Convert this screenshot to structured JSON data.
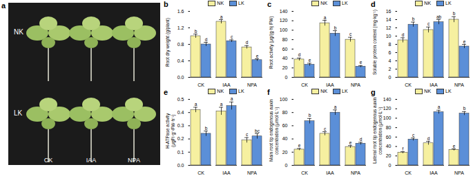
{
  "panel_a": {
    "panel": "a",
    "rows": [
      "NK",
      "LK"
    ],
    "columns": [
      "CK",
      "IAA",
      "NPA"
    ]
  },
  "chart_data": [
    {
      "type": "bar",
      "panel": "b",
      "y_label": "Root dry weight (g/plant)",
      "categories": [
        "CK",
        "IAA",
        "NPA"
      ],
      "series": [
        {
          "name": "NK",
          "color": "#f6f0a0",
          "values": [
            1.0,
            1.35,
            0.73
          ],
          "errors": [
            0.05,
            0.05,
            0.04
          ],
          "letters": [
            "b",
            "a",
            "d"
          ]
        },
        {
          "name": "LK",
          "color": "#5b8fd8",
          "values": [
            0.8,
            0.88,
            0.42
          ],
          "errors": [
            0.05,
            0.03,
            0.03
          ],
          "letters": [
            "d",
            "c",
            "e"
          ]
        }
      ],
      "ylim": [
        0,
        1.6
      ],
      "yticks": [
        {
          "value": 0,
          "label": "0.0"
        },
        0.4,
        0.8,
        1.2,
        1.6
      ],
      "legend": "top"
    },
    {
      "type": "bar",
      "panel": "c",
      "y_label": "Root activity (μg/(g·h) FW)",
      "categories": [
        "CK",
        "IAA",
        "NPA"
      ],
      "series": [
        {
          "name": "NK",
          "color": "#f6f0a0",
          "values": [
            38,
            115,
            80
          ],
          "errors": [
            3,
            6,
            5
          ],
          "letters": [
            "d",
            "a",
            "c"
          ]
        },
        {
          "name": "LK",
          "color": "#5b8fd8",
          "values": [
            27,
            93,
            23
          ],
          "errors": [
            3,
            6,
            2
          ],
          "letters": [
            "e",
            "b",
            "e"
          ]
        }
      ],
      "ylim": [
        0,
        140
      ],
      "yticks": [
        0,
        20,
        40,
        60,
        80,
        100,
        120,
        140
      ],
      "legend": "top"
    },
    {
      "type": "bar",
      "panel": "d",
      "y_label": "Soluble protein content (mg·kg⁻¹)",
      "categories": [
        "CK",
        "IAA",
        "NPA"
      ],
      "series": [
        {
          "name": "NK",
          "color": "#f6f0a0",
          "values": [
            9.0,
            11.5,
            14.0
          ],
          "errors": [
            0.6,
            0.7,
            0.7
          ],
          "letters": [
            "d",
            "c",
            "b"
          ]
        },
        {
          "name": "LK",
          "color": "#5b8fd8",
          "values": [
            12.8,
            13.4,
            7.5
          ],
          "errors": [
            0.6,
            0.6,
            0.5
          ],
          "letters": [
            "b",
            "ab",
            "e"
          ]
        }
      ],
      "ylim": [
        0,
        16
      ],
      "yticks": [
        0,
        2,
        4,
        6,
        8,
        10,
        12,
        14,
        16
      ],
      "legend": "top"
    },
    {
      "type": "bar",
      "panel": "e",
      "y_label": "H-ATPase activity (μgPi·g⁻¹FW·h⁻¹)",
      "categories": [
        "CK",
        "IAA",
        "NPA"
      ],
      "series": [
        {
          "name": "NK",
          "color": "#f6f0a0",
          "values": [
            0.42,
            0.41,
            0.19
          ],
          "errors": [
            0.02,
            0.03,
            0.02
          ],
          "letters": [
            "a",
            "a",
            "c"
          ]
        },
        {
          "name": "LK",
          "color": "#5b8fd8",
          "values": [
            0.24,
            0.45,
            0.22
          ],
          "errors": [
            0.02,
            0.03,
            0.02
          ],
          "letters": [
            "b",
            "a",
            "bc"
          ]
        }
      ],
      "ylim": [
        0,
        0.5
      ],
      "yticks": [
        {
          "value": 0,
          "label": "0.0"
        },
        0.1,
        0.2,
        0.3,
        0.4,
        0.5
      ],
      "legend": "top"
    },
    {
      "type": "bar",
      "panel": "f",
      "y_label": "Main root tip endogenous auxin concentration (μmol·L⁻¹)",
      "categories": [
        "CK",
        "IAA",
        "NPA"
      ],
      "series": [
        {
          "name": "NK",
          "color": "#f6f0a0",
          "values": [
            24,
            48,
            28
          ],
          "errors": [
            1.5,
            3,
            2
          ],
          "letters": [
            "e",
            "c",
            "e"
          ]
        },
        {
          "name": "LK",
          "color": "#5b8fd8",
          "values": [
            67,
            80,
            33
          ],
          "errors": [
            4,
            4,
            2
          ],
          "letters": [
            "b",
            "a",
            "d"
          ]
        }
      ],
      "ylim": [
        0,
        100
      ],
      "yticks": [
        0,
        20,
        40,
        60,
        80,
        100
      ],
      "legend": "top"
    },
    {
      "type": "bar",
      "panel": "g",
      "y_label": "Lateral root tip endogenous auxin concentration (μmol·L⁻¹)",
      "categories": [
        "CK",
        "IAA",
        "NPA"
      ],
      "series": [
        {
          "name": "NK",
          "color": "#f6f0a0",
          "values": [
            27,
            47,
            33
          ],
          "errors": [
            2,
            4,
            2
          ],
          "letters": [
            "f",
            "d",
            "e"
          ]
        },
        {
          "name": "LK",
          "color": "#5b8fd8",
          "values": [
            55,
            113,
            110
          ],
          "errors": [
            3,
            4,
            4
          ],
          "letters": [
            "c",
            "a",
            "b"
          ]
        }
      ],
      "ylim": [
        0,
        140
      ],
      "yticks": [
        0,
        20,
        40,
        60,
        80,
        100,
        120,
        140
      ],
      "legend": "top"
    }
  ]
}
